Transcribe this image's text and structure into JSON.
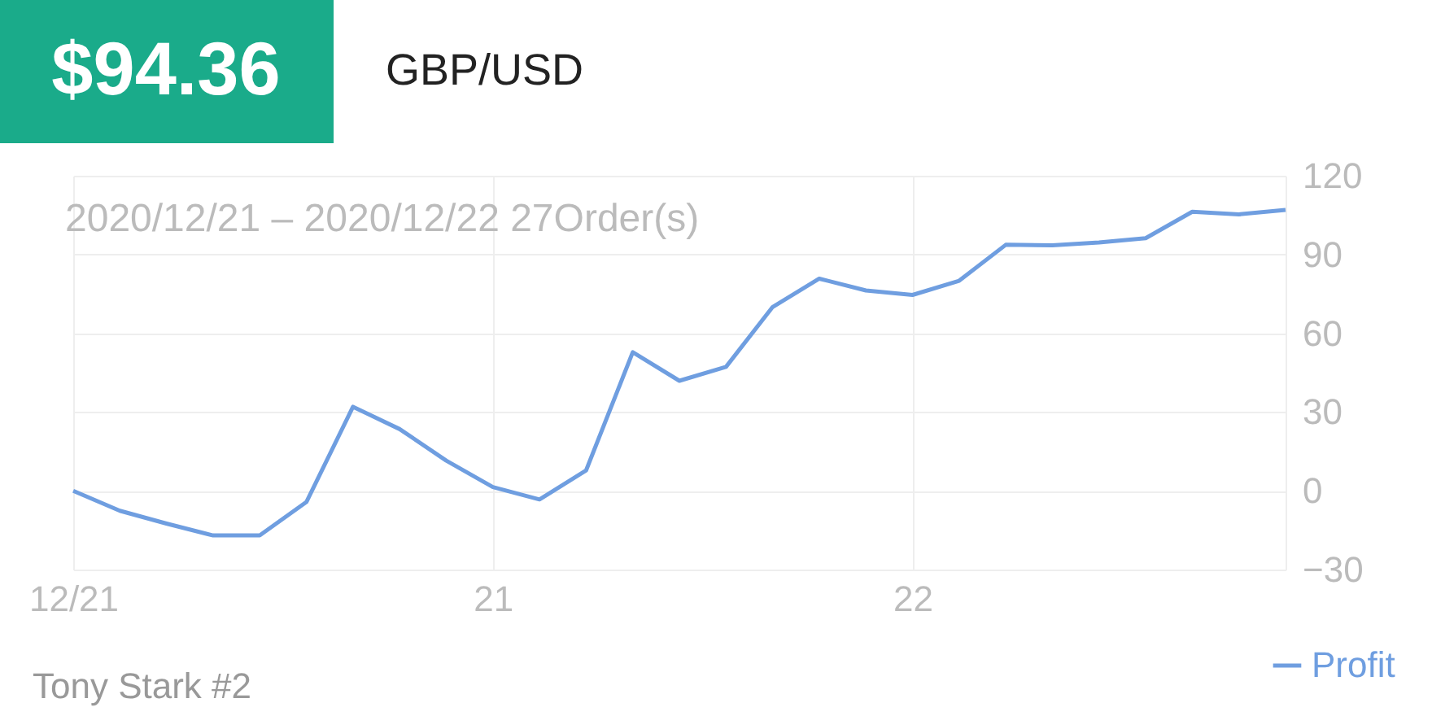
{
  "chart_data": {
    "type": "line",
    "title": "$94.36",
    "subtitle": "GBP/USD",
    "annotations": [
      "2020/12/21 – 2020/12/22 27Order(s)",
      "Tony Stark #2"
    ],
    "categories": [
      "12/21",
      null,
      null,
      null,
      null,
      null,
      null,
      null,
      null,
      "21",
      null,
      null,
      null,
      null,
      null,
      null,
      null,
      null,
      "22",
      null,
      null,
      null,
      null,
      null,
      null,
      null,
      null
    ],
    "series": [
      {
        "name": "Profit",
        "color": "#6f9ee0",
        "values": [
          0,
          -7.6,
          -12.5,
          -17,
          -17,
          -4.3,
          32,
          23.5,
          11.5,
          1.4,
          -3.3,
          7.8,
          52.8,
          41.9,
          47.2,
          70,
          80.8,
          76.3,
          74.6,
          80,
          93.7,
          93.5,
          94.6,
          96.2,
          106.3,
          105.3,
          107
        ]
      }
    ],
    "ylim": [
      -30,
      120
    ],
    "yticks": [
      -30,
      0,
      30,
      60,
      90,
      120
    ],
    "grid": true,
    "legend": "bottom right",
    "marker": "none",
    "line_style": "solid"
  }
}
